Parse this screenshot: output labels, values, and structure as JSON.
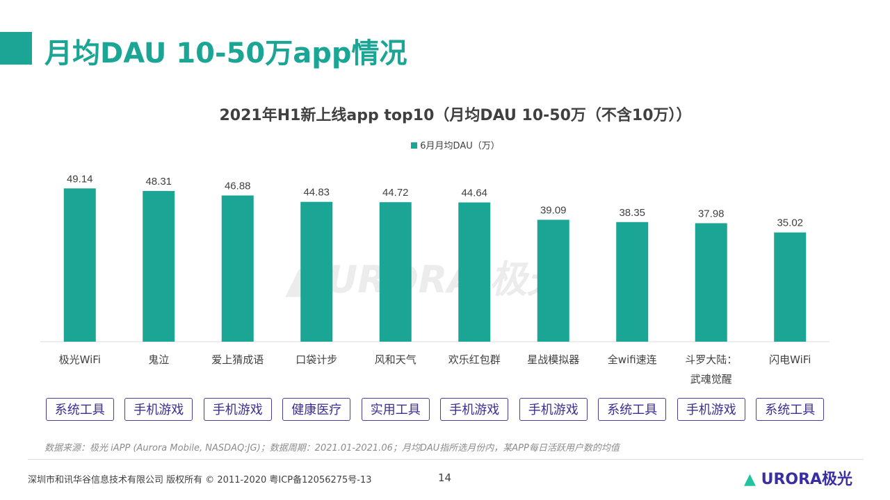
{
  "page_title": "月均DAU 10-50万app情况",
  "chart_data": {
    "type": "bar",
    "title": "2021年H1新上线app top10（月均DAU 10-50万（不含10万））",
    "legend": "6月月均DAU（万）",
    "legend_position": "top",
    "color": "#1aa594",
    "categories": [
      "极光WiFi",
      "鬼泣",
      "爱上猜成语",
      "口袋计步",
      "风和天气",
      "欢乐红包群",
      "星战模拟器",
      "全wifi速连",
      "斗罗大陆：武魂觉醒",
      "闪电WiFi"
    ],
    "series": [
      {
        "name": "6月月均DAU（万）",
        "values": [
          49.14,
          48.31,
          46.88,
          44.83,
          44.72,
          44.64,
          39.09,
          38.35,
          37.98,
          35.02
        ]
      }
    ],
    "ylim": [
      0,
      55
    ],
    "grid": false
  },
  "tags": [
    "系统工具",
    "手机游戏",
    "手机游戏",
    "健康医疗",
    "实用工具",
    "手机游戏",
    "手机游戏",
    "系统工具",
    "手机游戏",
    "系统工具"
  ],
  "tag_color": "#4b3aa0",
  "note": "数据来源：极光 iAPP (Aurora Mobile, NASDAQ:JG)；数据周期：2021.01-2021.06；月均DAU指所选月份内，某APP每日活跃用户数的均值",
  "footer": "深圳市和讯华谷信息技术有限公司  版权所有 © 2011-2020 粤ICP备12056275号-13",
  "page_number": "14",
  "logo": "URORA极光",
  "watermark": "URORA极光"
}
